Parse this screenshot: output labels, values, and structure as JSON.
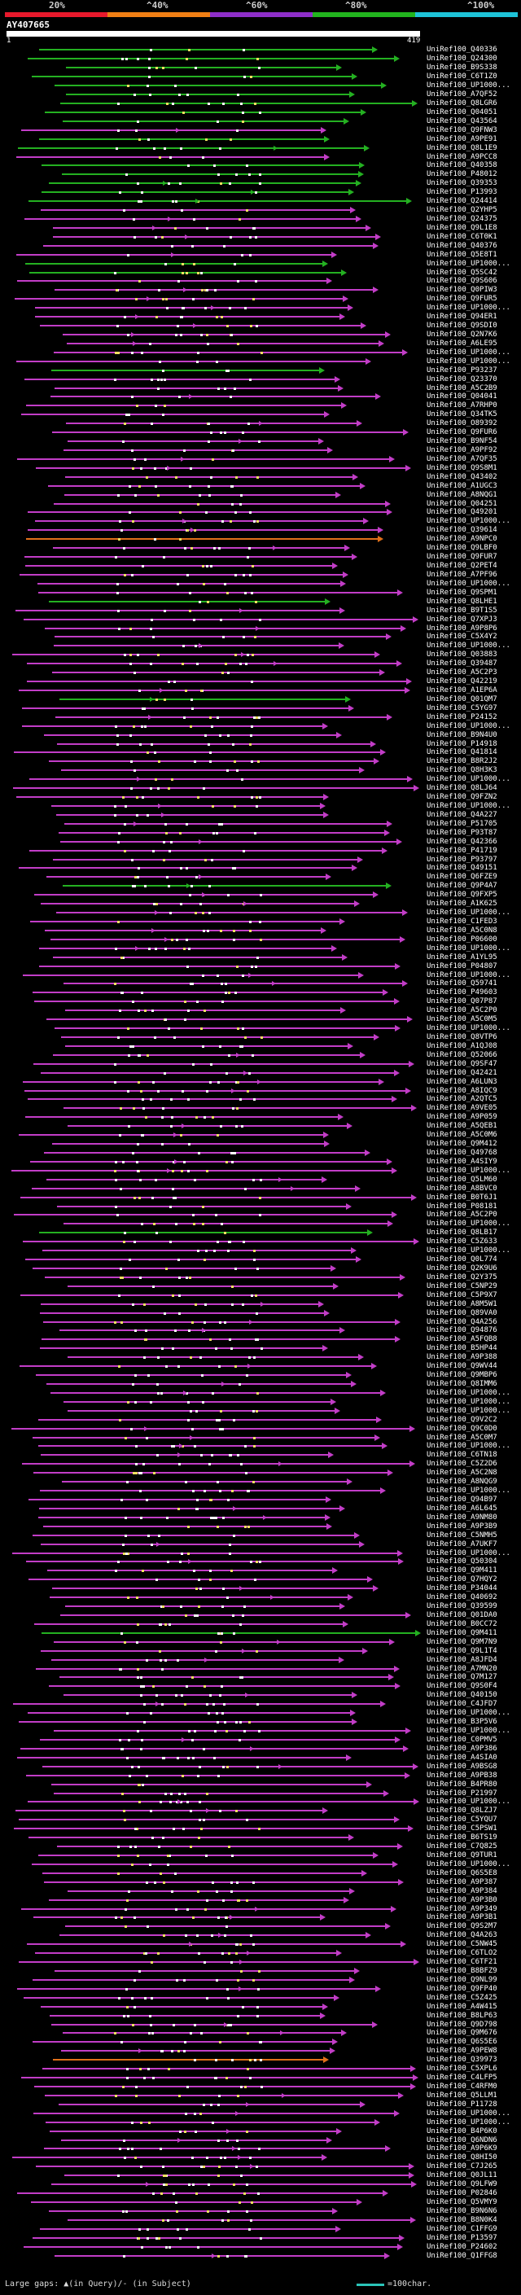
{
  "scale": {
    "labels": [
      "20%",
      "^40%",
      "^60%",
      "^80%",
      "^100%"
    ],
    "colors": [
      "#e8192c",
      "#f07f14",
      "#8e2ec9",
      "#22b41e",
      "#1ec3d8"
    ]
  },
  "query": {
    "name": "AY407665",
    "start": "1",
    "end": "419"
  },
  "legend": {
    "gaps_text": "Large gaps: ▲(in Query)/- (in Subject)",
    "scale_text": "=100char."
  },
  "colors": {
    "purple": "#c23dc7",
    "green": "#24b021",
    "orange": "#e0701a",
    "white": "#ffffff",
    "yellow": "#f0e060"
  },
  "hit_colors": "GGGGGGGGGPGGPGGGGGPPPPPPGGPPPPPPPPPPGPPPPPPPPPPPPPPPPPPOPPPPPPGPPPPPPPPPPGPPPPPPPPPPPPPPPPPPPPGPPPPPPPPPPPPPPPPPPPPPPPPPPPPPPPPPPPPPPGPPPPPPPPPPPPPPPPPPPPPPPPPPPPPPPPPPPPPPPPPPPPGPPPPPPPPPPPPPPPPPPPPPPPPPPPPPPPPPPPPPPPPPPPPPPPOPPPPPPPPPPPPPPPPPPPPPPPPPPPPPPPPPPPPPPPPPPPPPPPPPPPPPPPPPPPPPPPPPPP",
  "hits": [
    "UniRef100_Q40336",
    "UniRef100_Q24300",
    "UniRef100_B9S338",
    "UniRef100_C6T1Z0",
    "UniRef100_UP1000...",
    "UniRef100_A7QF52",
    "UniRef100_Q8LGR6",
    "UniRef100_Q04051",
    "UniRef100_Q43564",
    "UniRef100_Q9FNW3",
    "UniRef100_A9PE91",
    "UniRef100_Q8L1E9",
    "UniRef100_A9PCC8",
    "UniRef100_Q40358",
    "UniRef100_P48012",
    "UniRef100_Q39353",
    "UniRef100_P13993",
    "UniRef100_Q24414",
    "UniRef100_Q2YHP5",
    "UniRef100_Q24375",
    "UniRef100_Q9L1E8",
    "UniRef100_C6T0K1",
    "UniRef100_Q40376",
    "UniRef100_Q5E8T1",
    "UniRef100_UP1000...",
    "UniRef100_Q5SC42",
    "UniRef100_Q9S606",
    "UniRef100_Q0PIW3",
    "UniRef100_Q9FUR5",
    "UniRef100_UP1000...",
    "UniRef100_Q94ER1",
    "UniRef100_Q9SDI0",
    "UniRef100_Q2N7K6",
    "UniRef100_A6LE95",
    "UniRef100_UP1000...",
    "UniRef100_UP1000...",
    "UniRef100_P93237",
    "UniRef100_Q23370",
    "UniRef100_A5C2B9",
    "UniRef100_Q04041",
    "UniRef100_A7RHP0",
    "UniRef100_Q34TK5",
    "UniRef100_O89392",
    "UniRef100_Q9FUR6",
    "UniRef100_B9NF54",
    "UniRef100_A9PF92",
    "UniRef100_A7QF35",
    "UniRef100_Q9S8M1",
    "UniRef100_Q43402",
    "UniRef100_A1UGC3",
    "UniRef100_A8NQG1",
    "UniRef100_Q04251",
    "UniRef100_Q49201",
    "UniRef100_UP1000...",
    "UniRef100_Q39614",
    "UniRef100_A9NPC0",
    "UniRef100_Q9LBF0",
    "UniRef100_Q9FUR7",
    "UniRef100_Q2PET4",
    "UniRef100_A7PF96",
    "UniRef100_UP1000...",
    "UniRef100_Q9SPM1",
    "UniRef100_Q8LHE1",
    "UniRef100_B9T1S5",
    "UniRef100_Q7XPJ3",
    "UniRef100_A9P8P6",
    "UniRef100_C5X4Y2",
    "UniRef100_UP1000...",
    "UniRef100_Q03883",
    "UniRef100_Q39487",
    "UniRef100_A5C2P3",
    "UniRef100_Q42219",
    "UniRef100_A1EP6A",
    "UniRef100_Q01QM7",
    "UniRef100_C5YG97",
    "UniRef100_P24152",
    "UniRef100_UP1000...",
    "UniRef100_B9N4U0",
    "UniRef100_P14918",
    "UniRef100_Q41814",
    "UniRef100_B8R2J2",
    "UniRef100_Q8H3K3",
    "UniRef100_UP1000...",
    "UniRef100_Q8LJ64",
    "UniRef100_Q9FZN2",
    "UniRef100_UP1000...",
    "UniRef100_Q4A227",
    "UniRef100_P51705",
    "UniRef100_P93T87",
    "UniRef100_Q42366",
    "UniRef100_P41719",
    "UniRef100_P93797",
    "UniRef100_Q49151",
    "UniRef100_Q6FZE9",
    "UniRef100_Q9P4A7",
    "UniRef100_Q9FXP5",
    "UniRef100_A1K625",
    "UniRef100_UP1000...",
    "UniRef100_C1FED3",
    "UniRef100_A5C0N8",
    "UniRef100_P06600",
    "UniRef100_UP1000...",
    "UniRef100_A1YL95",
    "UniRef100_P04807",
    "UniRef100_UP1000...",
    "UniRef100_Q59741",
    "UniRef100_P49603",
    "UniRef100_Q07P87",
    "UniRef100_A5C2P0",
    "UniRef100_A5C0M5",
    "UniRef100_UP1000...",
    "UniRef100_Q8VTP6",
    "UniRef100_A1QJ08",
    "UniRef100_Q52066",
    "UniRef100_Q9SF47",
    "UniRef100_Q42421",
    "UniRef100_A6LUN3",
    "UniRef100_A8IQC9",
    "UniRef100_A2QTC5",
    "UniRef100_A9VE05",
    "UniRef100_A9P059",
    "UniRef100_A5QEB1",
    "UniRef100_A5C0M6",
    "UniRef100_Q9M412",
    "UniRef100_Q49768",
    "UniRef100_A4SIY9",
    "UniRef100_UP1000...",
    "UniRef100_Q5LM60",
    "UniRef100_A8BVC0",
    "UniRef100_B0T6J1",
    "UniRef100_P08181",
    "UniRef100_A5C2P0",
    "UniRef100_UP1000...",
    "UniRef100_Q8LB17",
    "UniRef100_C5Z633",
    "UniRef100_UP1000...",
    "UniRef100_Q0L774",
    "UniRef100_Q2K9U6",
    "UniRef100_Q2Y375",
    "UniRef100_C5NP29",
    "UniRef100_C5P9X7",
    "UniRef100_A8M5W1",
    "UniRef100_Q89VA0",
    "UniRef100_Q4A256",
    "UniRef100_Q94876",
    "UniRef100_A5FQB8",
    "UniRef100_B5HP44",
    "UniRef100_A9P388",
    "UniRef100_Q9WV44",
    "UniRef100_Q9MBP6",
    "UniRef100_Q8IMM6",
    "UniRef100_UP1000...",
    "UniRef100_UP1000...",
    "UniRef100_UP1000...",
    "UniRef100_Q9V2C2",
    "UniRef100_Q9C0D0",
    "UniRef100_A5C0M7",
    "UniRef100_UP1000...",
    "UniRef100_C6TN18",
    "UniRef100_C5Z2D6",
    "UniRef100_A5C2N8",
    "UniRef100_A8NQG9",
    "UniRef100_UP1000...",
    "UniRef100_Q94B97",
    "UniRef100_A6L645",
    "UniRef100_A9NM80",
    "UniRef100_A9P3B9",
    "UniRef100_C5NMH5",
    "UniRef100_A7UKF7",
    "UniRef100_UP1000...",
    "UniRef100_Q50304",
    "UniRef100_Q9M411",
    "UniRef100_Q7HQY2",
    "UniRef100_P34044",
    "UniRef100_Q40692",
    "UniRef100_Q39599",
    "UniRef100_Q01DA0",
    "UniRef100_B0CC72",
    "UniRef100_Q9M411",
    "UniRef100_Q9M7N9",
    "UniRef100_Q9L1T4",
    "UniRef100_A8JFD4",
    "UniRef100_A7MN20",
    "UniRef100_Q7M127",
    "UniRef100_Q9S0F4",
    "UniRef100_Q40150",
    "UniRef100_C4JFD7",
    "UniRef100_UP1000...",
    "UniRef100_B3P5V6",
    "UniRef100_UP1000...",
    "UniRef100_C0PMV5",
    "UniRef100_A9P386",
    "UniRef100_A4SIA0",
    "UniRef100_A9BSG8",
    "UniRef100_A9PB38",
    "UniRef100_B4PR80",
    "UniRef100_P21997",
    "UniRef100_UP1000...",
    "UniRef100_Q8LZJ7",
    "UniRef100_C5YQU7",
    "UniRef100_C5PSW1",
    "UniRef100_B6TS19",
    "UniRef100_C7Q825",
    "UniRef100_Q9TUR1",
    "UniRef100_UP1000...",
    "UniRef100_Q6S5E8",
    "UniRef100_A9P387",
    "UniRef100_A9P384",
    "UniRef100_A9P3B0",
    "UniRef100_A9P349",
    "UniRef100_A9P3B1",
    "UniRef100_Q9S2M7",
    "UniRef100_Q4A263",
    "UniRef100_C5NW45",
    "UniRef100_C6TLO2",
    "UniRef100_C6TF21",
    "UniRef100_B8BFZ9",
    "UniRef100_Q9NL99",
    "UniRef100_Q9FP40",
    "UniRef100_C5Z425",
    "UniRef100_A4W415",
    "UniRef100_B8LP63",
    "UniRef100_Q9D798",
    "UniRef100_Q9M676",
    "UniRef100_Q6S5E6",
    "UniRef100_A9PEW8",
    "UniRef100_Q39973",
    "UniRef100_C5XPL6",
    "UniRef100_C4LFP5",
    "UniRef100_C4RFM0",
    "UniRef100_Q5LLM1",
    "UniRef100_P11728",
    "UniRef100_UP1000...",
    "UniRef100_UP1000...",
    "UniRef100_B4P6K0",
    "UniRef100_Q6NDN6",
    "UniRef100_A9P6K9",
    "UniRef100_Q8HI50",
    "UniRef100_C7J265",
    "UniRef100_Q0JL11",
    "UniRef100_Q9LFW9",
    "UniRef100_P02846",
    "UniRef100_Q5VMY9",
    "UniRef100_B9N6N6",
    "UniRef100_B8N0K4",
    "UniRef100_C1FFG9",
    "UniRef100_P13597",
    "UniRef100_P24602",
    "UniRef100_Q1FFG8"
  ]
}
